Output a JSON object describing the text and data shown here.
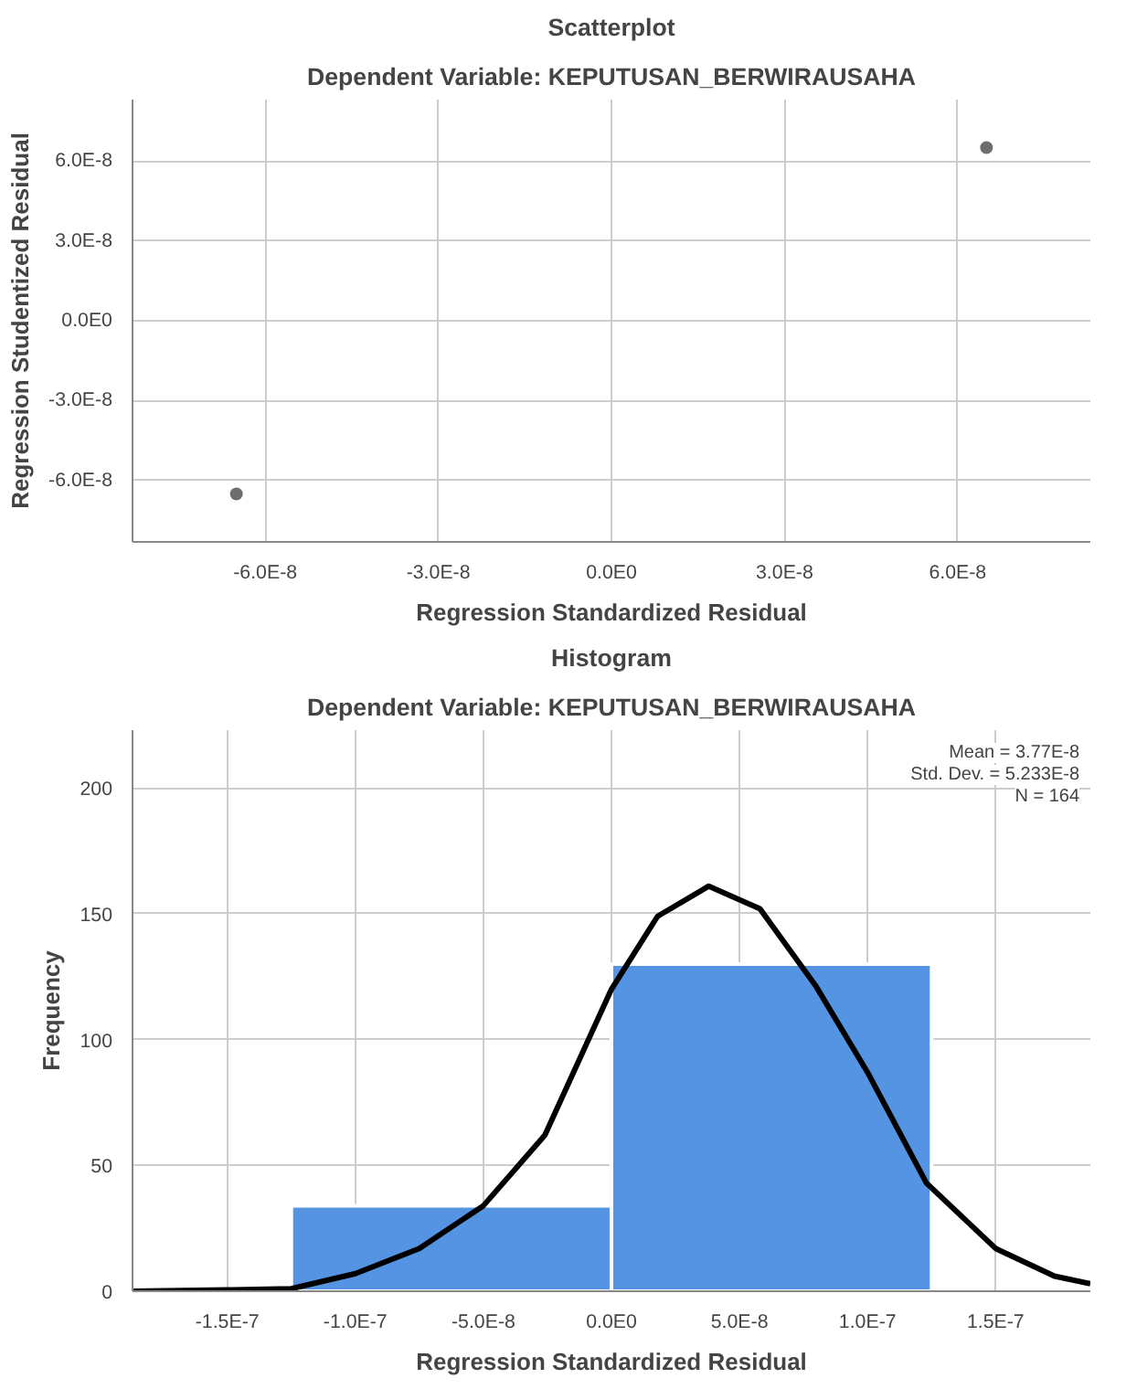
{
  "chart_data": [
    {
      "type": "scatter",
      "title": "Scatterplot",
      "subtitle": "Dependent Variable: KEPUTUSAN_BERWIRAUSAHA",
      "xlabel": "Regression Standardized Residual",
      "ylabel": "Regression Studentized Residual",
      "x": [
        -6.5e-08,
        6.5e-08
      ],
      "values": [
        -6.5e-08,
        6.5e-08
      ],
      "color": "#6e6e6e",
      "marker": "circle",
      "xlim": [
        -8.3e-08,
        8.3e-08
      ],
      "ylim": [
        -8.3e-08,
        8.3e-08
      ],
      "xticks": [
        {
          "value": -6e-08,
          "label": "-6.0E-8"
        },
        {
          "value": -3e-08,
          "label": "-3.0E-8"
        },
        {
          "value": 0,
          "label": "0.0E0"
        },
        {
          "value": 3e-08,
          "label": "3.0E-8"
        },
        {
          "value": 6e-08,
          "label": "6.0E-8"
        }
      ],
      "yticks": [
        {
          "value": -6e-08,
          "label": "-6.0E-8"
        },
        {
          "value": -3e-08,
          "label": "-3.0E-8"
        },
        {
          "value": 0,
          "label": "0.0E0"
        },
        {
          "value": 3e-08,
          "label": "3.0E-8"
        },
        {
          "value": 6e-08,
          "label": "6.0E-8"
        }
      ],
      "grid": true
    },
    {
      "type": "histogram",
      "title": "Histogram",
      "subtitle": "Dependent Variable: KEPUTUSAN_BERWIRAUSAHA",
      "xlabel": "Regression Standardized Residual",
      "ylabel": "Frequency",
      "series": [
        {
          "type": "histogram",
          "bins": [
            -1.25e-07,
            0,
            1.25e-07
          ],
          "values": [
            34,
            130
          ],
          "color": "#5594e3"
        },
        {
          "type": "line",
          "color": "#000000",
          "x": [
            -1.87e-07,
            -1.5e-07,
            -1.25e-07,
            -1e-07,
            -7.5e-08,
            -5e-08,
            -2.6e-08,
            0,
            1.8e-08,
            3.8e-08,
            5.8e-08,
            8e-08,
            1e-07,
            1.23e-07,
            1.5e-07,
            1.73e-07,
            1.87e-07
          ],
          "values": [
            0,
            0.5,
            1,
            7,
            17,
            34,
            62,
            120,
            149,
            161,
            152,
            121,
            87,
            43,
            17,
            6,
            3
          ]
        }
      ],
      "annotations": [
        "Mean = 3.77E-8",
        "Std. Dev. = 5.233E-8",
        "N = 164"
      ],
      "xlim": [
        -1.87e-07,
        1.87e-07
      ],
      "ylim": [
        0,
        223
      ],
      "xticks": [
        {
          "value": -1.5e-07,
          "label": "-1.5E-7"
        },
        {
          "value": -1e-07,
          "label": "-1.0E-7"
        },
        {
          "value": -5e-08,
          "label": "-5.0E-8"
        },
        {
          "value": 0,
          "label": "0.0E0"
        },
        {
          "value": 5e-08,
          "label": "5.0E-8"
        },
        {
          "value": 1e-07,
          "label": "1.0E-7"
        },
        {
          "value": 1.5e-07,
          "label": "1.5E-7"
        }
      ],
      "yticks": [
        0,
        50,
        100,
        150,
        200
      ],
      "grid": true
    }
  ]
}
